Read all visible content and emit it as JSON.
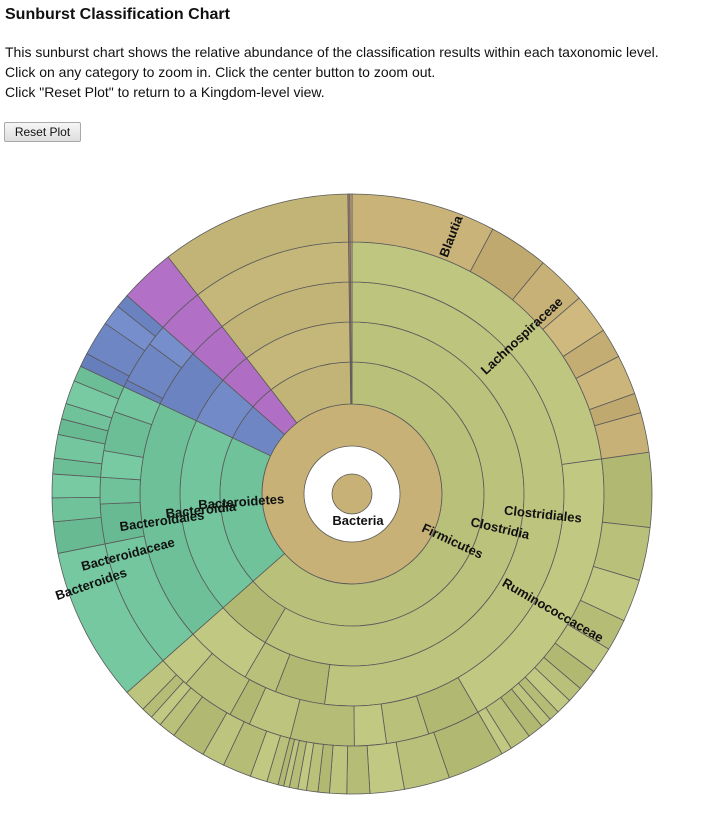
{
  "page": {
    "title": "Sunburst Classification Chart",
    "description": [
      "This sunburst chart shows the relative abundance of the classification results within each taxonomic level.",
      "Click on any category to zoom in. Click the center button to zoom out.",
      "Click \"Reset Plot\" to return to a Kingdom-level view."
    ],
    "reset_label": "Reset Plot"
  },
  "chart_data": {
    "type": "sunburst",
    "ring_order": [
      "Kingdom",
      "Phylum",
      "Class",
      "Order",
      "Family",
      "Genus"
    ],
    "kingdom": {
      "name": "Bacteria",
      "value": 100
    },
    "phyla": [
      {
        "name": "Firmicutes",
        "value": 63.5,
        "color": "#b9c07a"
      },
      {
        "name": "Bacteroidetes",
        "value": 18.5,
        "color": "#6fc29a"
      },
      {
        "name": "",
        "value": 4.5,
        "color": "#6e86c4"
      },
      {
        "name": "",
        "value": 3.0,
        "color": "#b06fc4"
      },
      {
        "name": "",
        "value": 10.5,
        "color": "#c2b476"
      }
    ],
    "labeled_path_firmicutes": [
      "Firmicutes",
      "Clostridia",
      "Clostridiales",
      "Lachnospiraceae",
      "Blautia"
    ],
    "labeled_path_ruminococcaceae": [
      "Firmicutes",
      "Clostridia",
      "Clostridiales",
      "Ruminococcaceae"
    ],
    "labeled_path_bacteroidetes": [
      "Bacteroidetes",
      "Bacteroidia",
      "Bacteroidales",
      "Bacteroidaceae",
      "Bacteroides"
    ],
    "colors": {
      "firmicutes": "#b9c07a",
      "bacteroidetes": "#6fc29a",
      "purple": "#b06fc4",
      "blue": "#6e86c4",
      "tan": "#c2b476",
      "bacteria": "#c7b177"
    }
  }
}
